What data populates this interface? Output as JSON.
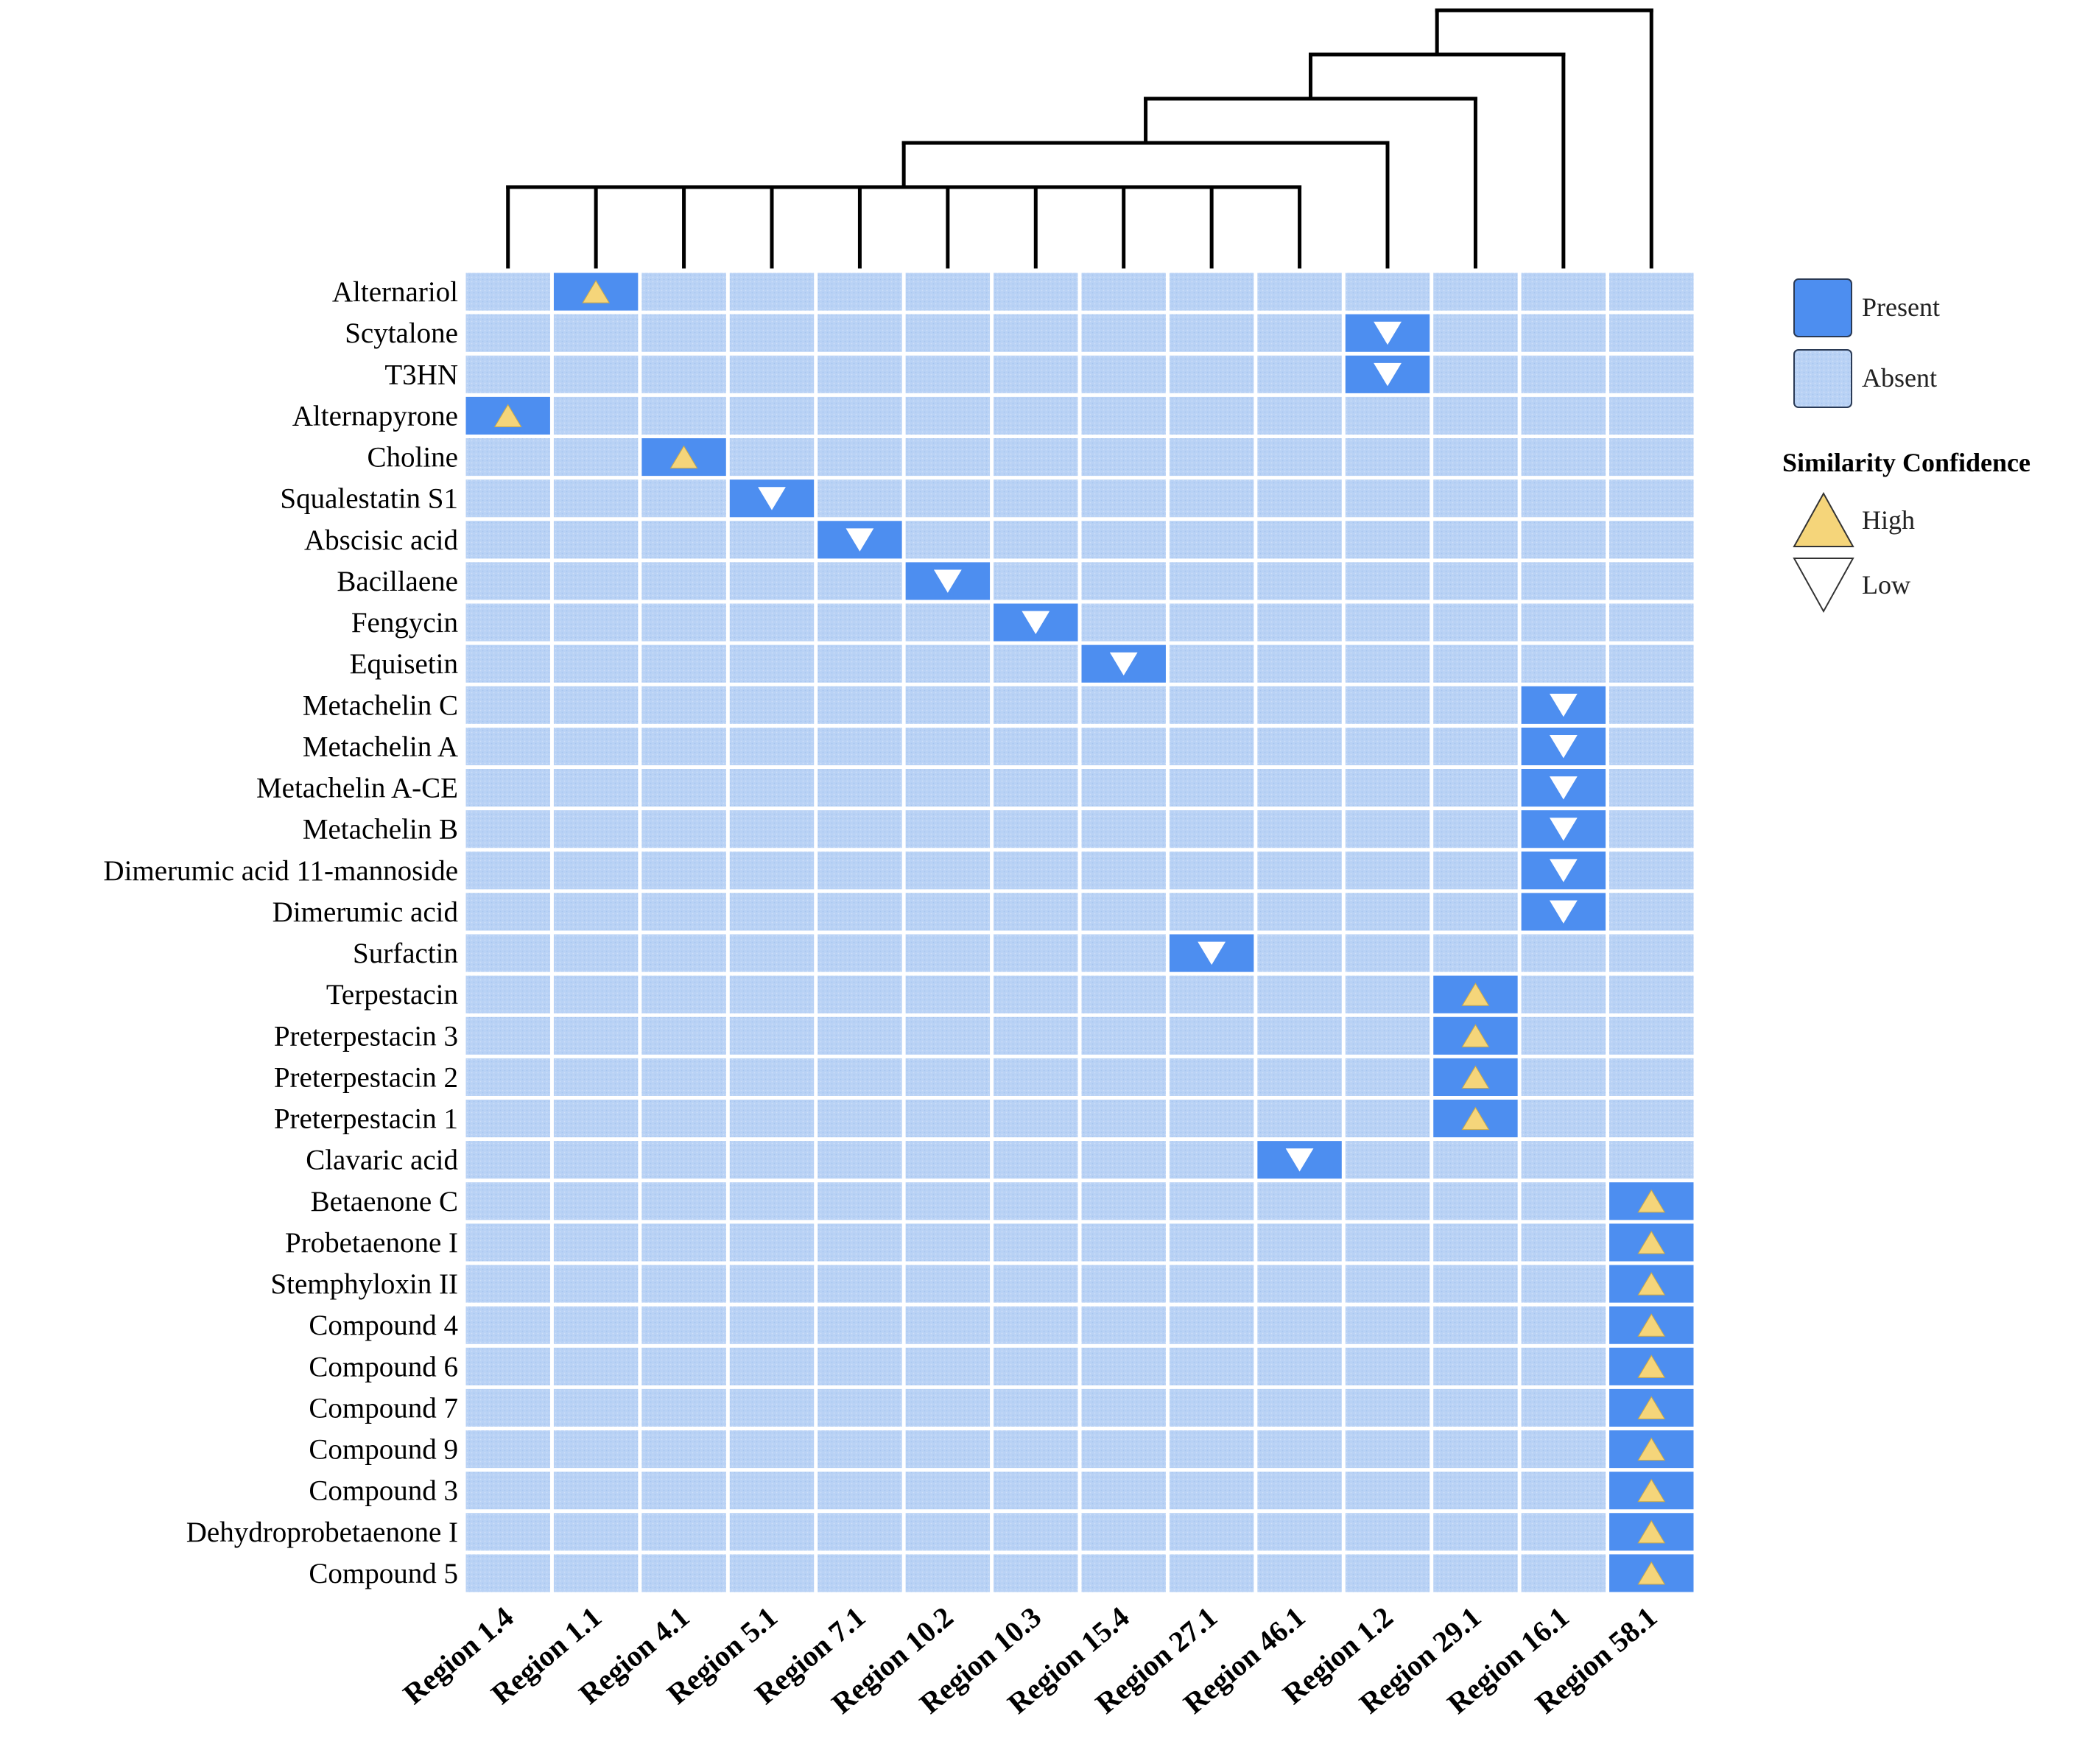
{
  "chart_data": {
    "type": "heatmap",
    "rows": [
      "Alternariol",
      "Scytalone",
      "T3HN",
      "Alternapyrone",
      "Choline",
      "Squalestatin S1",
      "Abscisic acid",
      "Bacillaene",
      "Fengycin",
      "Equisetin",
      "Metachelin C",
      "Metachelin A",
      "Metachelin A-CE",
      "Metachelin B",
      "Dimerumic acid 11-mannoside",
      "Dimerumic acid",
      "Surfactin",
      "Terpestacin",
      "Preterpestacin 3",
      "Preterpestacin 2",
      "Preterpestacin 1",
      "Clavaric acid",
      "Betaenone C",
      "Probetaenone I",
      "Stemphyloxin II",
      "Compound 4",
      "Compound 6",
      "Compound 7",
      "Compound 9",
      "Compound 3",
      "Dehydroprobetaenone I",
      "Compound 5"
    ],
    "columns": [
      "Region 1.4",
      "Region 1.1",
      "Region 4.1",
      "Region 5.1",
      "Region 7.1",
      "Region 10.2",
      "Region 10.3",
      "Region 15.4",
      "Region 27.1",
      "Region 46.1",
      "Region 1.2",
      "Region 29.1",
      "Region 16.1",
      "Region 58.1"
    ],
    "present_cells": [
      {
        "row": "Alternariol",
        "column": "Region 1.1",
        "confidence": "High"
      },
      {
        "row": "Scytalone",
        "column": "Region 1.2",
        "confidence": "Low"
      },
      {
        "row": "T3HN",
        "column": "Region 1.2",
        "confidence": "Low"
      },
      {
        "row": "Alternapyrone",
        "column": "Region 1.4",
        "confidence": "High"
      },
      {
        "row": "Choline",
        "column": "Region 4.1",
        "confidence": "High"
      },
      {
        "row": "Squalestatin S1",
        "column": "Region 5.1",
        "confidence": "Low"
      },
      {
        "row": "Abscisic acid",
        "column": "Region 7.1",
        "confidence": "Low"
      },
      {
        "row": "Bacillaene",
        "column": "Region 10.2",
        "confidence": "Low"
      },
      {
        "row": "Fengycin",
        "column": "Region 10.3",
        "confidence": "Low"
      },
      {
        "row": "Equisetin",
        "column": "Region 15.4",
        "confidence": "Low"
      },
      {
        "row": "Metachelin C",
        "column": "Region 16.1",
        "confidence": "Low"
      },
      {
        "row": "Metachelin A",
        "column": "Region 16.1",
        "confidence": "Low"
      },
      {
        "row": "Metachelin A-CE",
        "column": "Region 16.1",
        "confidence": "Low"
      },
      {
        "row": "Metachelin B",
        "column": "Region 16.1",
        "confidence": "Low"
      },
      {
        "row": "Dimerumic acid 11-mannoside",
        "column": "Region 16.1",
        "confidence": "Low"
      },
      {
        "row": "Dimerumic acid",
        "column": "Region 16.1",
        "confidence": "Low"
      },
      {
        "row": "Surfactin",
        "column": "Region 27.1",
        "confidence": "Low"
      },
      {
        "row": "Terpestacin",
        "column": "Region 29.1",
        "confidence": "High"
      },
      {
        "row": "Preterpestacin 3",
        "column": "Region 29.1",
        "confidence": "High"
      },
      {
        "row": "Preterpestacin 2",
        "column": "Region 29.1",
        "confidence": "High"
      },
      {
        "row": "Preterpestacin 1",
        "column": "Region 29.1",
        "confidence": "High"
      },
      {
        "row": "Clavaric acid",
        "column": "Region 46.1",
        "confidence": "Low"
      },
      {
        "row": "Betaenone C",
        "column": "Region 58.1",
        "confidence": "High"
      },
      {
        "row": "Probetaenone I",
        "column": "Region 58.1",
        "confidence": "High"
      },
      {
        "row": "Stemphyloxin II",
        "column": "Region 58.1",
        "confidence": "High"
      },
      {
        "row": "Compound 4",
        "column": "Region 58.1",
        "confidence": "High"
      },
      {
        "row": "Compound 6",
        "column": "Region 58.1",
        "confidence": "High"
      },
      {
        "row": "Compound 7",
        "column": "Region 58.1",
        "confidence": "High"
      },
      {
        "row": "Compound 9",
        "column": "Region 58.1",
        "confidence": "High"
      },
      {
        "row": "Compound 3",
        "column": "Region 58.1",
        "confidence": "High"
      },
      {
        "row": "Dehydroprobetaenone I",
        "column": "Region 58.1",
        "confidence": "High"
      },
      {
        "row": "Compound 5",
        "column": "Region 58.1",
        "confidence": "High"
      }
    ],
    "dendrogram": {
      "merges": [
        {
          "members": [
            "Region 1.4",
            "Region 1.1",
            "Region 4.1",
            "Region 5.1",
            "Region 7.1",
            "Region 10.2",
            "Region 10.3",
            "Region 15.4",
            "Region 27.1",
            "Region 46.1"
          ],
          "height": 1
        },
        {
          "members": [
            "cluster-0",
            "Region 1.2"
          ],
          "height": 2
        },
        {
          "members": [
            "cluster-1",
            "Region 29.1"
          ],
          "height": 3
        },
        {
          "members": [
            "cluster-2",
            "Region 16.1"
          ],
          "height": 4
        },
        {
          "members": [
            "cluster-3",
            "Region 58.1"
          ],
          "height": 5
        }
      ]
    },
    "legend": {
      "fill": [
        {
          "label": "Present",
          "color": "#4d8ef0"
        },
        {
          "label": "Absent",
          "color": "#b9d2f5"
        }
      ],
      "shape_title": "Similarity Confidence",
      "shapes": [
        {
          "label": "High",
          "shape": "triangle-up",
          "color": "#f5d57a"
        },
        {
          "label": "Low",
          "shape": "triangle-down",
          "color": "#ffffff"
        }
      ],
      "placement": "right"
    },
    "colors": {
      "present": "#4d8ef0",
      "absent": "#b9d2f5",
      "high_marker": "#f5d57a",
      "low_marker": "#ffffff",
      "dendrogram": "#000000"
    }
  }
}
